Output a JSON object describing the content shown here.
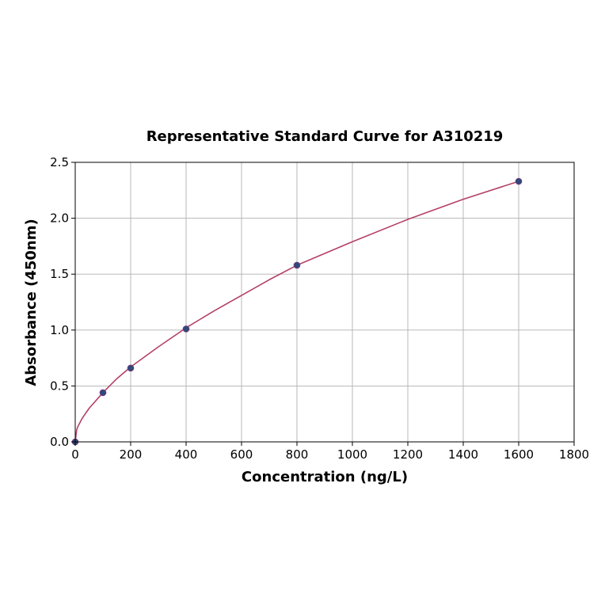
{
  "chart_data": {
    "type": "scatter",
    "title": "Representative Standard Curve for A310219",
    "xlabel": "Concentration (ng/L)",
    "ylabel": "Absorbance (450nm)",
    "xlim": [
      0,
      1800
    ],
    "ylim": [
      0,
      2.5
    ],
    "x_ticks": [
      "0",
      "200",
      "400",
      "600",
      "800",
      "1000",
      "1200",
      "1400",
      "1600",
      "1800"
    ],
    "y_ticks": [
      "0.0",
      "0.5",
      "1.0",
      "1.5",
      "2.0",
      "2.5"
    ],
    "grid": true,
    "series": [
      {
        "kind": "points",
        "x": [
          0,
          100,
          200,
          400,
          800,
          1600
        ],
        "y": [
          0.0,
          0.44,
          0.66,
          1.01,
          1.58,
          2.33
        ]
      },
      {
        "kind": "fitted-curve",
        "x": [
          0,
          5,
          10,
          25,
          50,
          100,
          150,
          200,
          300,
          400,
          500,
          600,
          700,
          800,
          1000,
          1200,
          1400,
          1600
        ],
        "y": [
          0.0,
          0.105,
          0.14,
          0.21,
          0.3,
          0.44,
          0.565,
          0.67,
          0.85,
          1.02,
          1.17,
          1.31,
          1.45,
          1.58,
          1.79,
          1.99,
          2.17,
          2.33
        ]
      }
    ],
    "colors": {
      "points_fill": "#2e4a7a",
      "points_edge": "#6a3a7a",
      "curve": "#b4406a"
    }
  }
}
